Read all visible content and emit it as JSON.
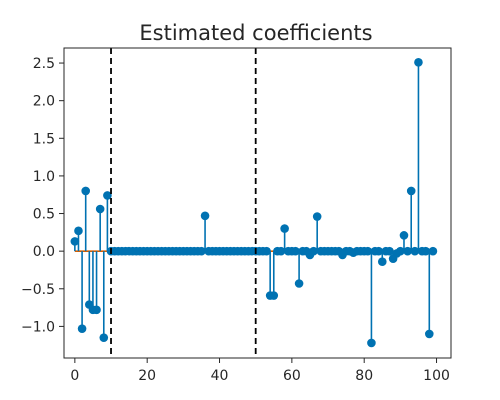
{
  "chart_data": {
    "type": "stem",
    "title": "Estimated coefficients",
    "xlabel": "",
    "ylabel": "",
    "xlim": [
      -3,
      104
    ],
    "ylim": [
      -1.42,
      2.7
    ],
    "x_ticks": [
      0,
      20,
      40,
      60,
      80,
      100
    ],
    "y_ticks": [
      -1.0,
      -0.5,
      0.0,
      0.5,
      1.0,
      1.5,
      2.0,
      2.5
    ],
    "x_tick_labels": [
      "0",
      "20",
      "40",
      "60",
      "80",
      "100"
    ],
    "y_tick_labels": [
      "−1.0",
      "−0.5",
      "0.0",
      "0.5",
      "1.0",
      "1.5",
      "2.0",
      "2.5"
    ],
    "vertical_lines": [
      10,
      50
    ],
    "baseline": 0.0,
    "colors": {
      "stem": "#0072B2",
      "baseline": "#D55E00",
      "vline": "#000000",
      "frame": "#262626"
    },
    "series": [
      {
        "name": "coefficients",
        "values": [
          0.13,
          0.27,
          -1.03,
          0.8,
          -0.71,
          -0.78,
          -0.78,
          0.56,
          -1.15,
          0.74,
          0,
          0,
          0,
          0,
          0,
          0,
          0,
          0,
          0,
          0,
          0,
          0,
          0,
          0,
          0,
          0,
          0,
          0,
          0,
          0,
          0,
          0,
          0,
          0,
          0,
          0,
          0.47,
          0,
          0,
          0,
          0,
          0,
          0,
          0,
          0,
          0,
          0,
          0,
          0,
          0,
          0,
          0,
          0,
          0,
          -0.59,
          -0.59,
          0,
          0,
          0.3,
          0,
          0,
          0,
          -0.43,
          0,
          0,
          -0.05,
          0,
          0.46,
          0,
          0,
          0,
          0,
          0,
          0,
          -0.05,
          0,
          0,
          -0.02,
          0,
          0,
          0,
          0,
          -1.22,
          0,
          0,
          -0.14,
          0,
          0,
          -0.1,
          -0.03,
          0,
          0.21,
          0,
          0.8,
          0,
          2.51,
          0,
          0,
          -1.1,
          0
        ]
      }
    ]
  }
}
